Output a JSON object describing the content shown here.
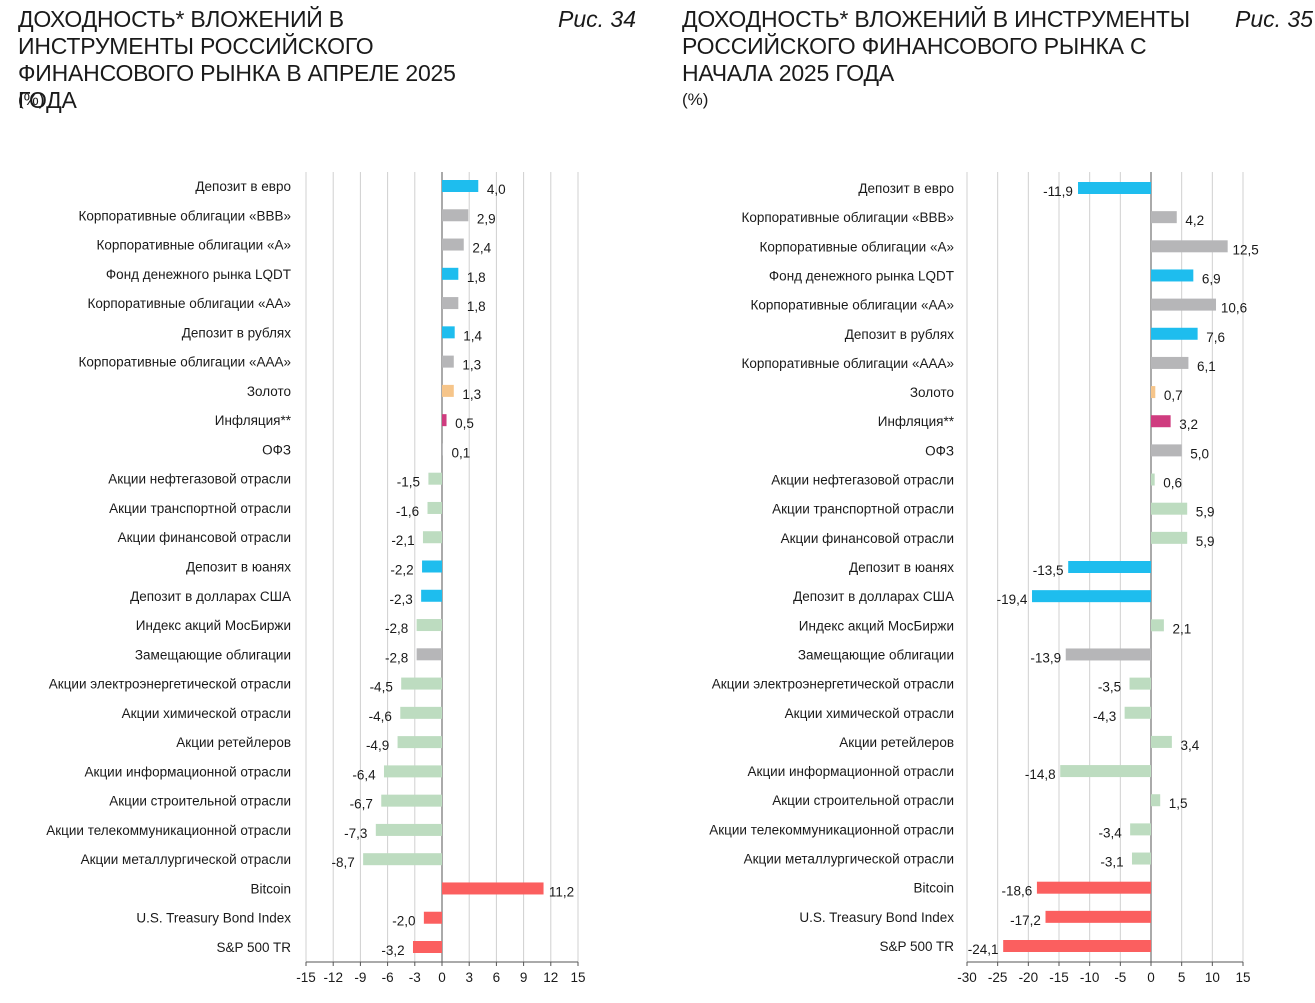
{
  "charts": [
    {
      "title": "ДОХОДНОСТЬ* ВЛОЖЕНИЙ В ИНСТРУМЕНТЫ РОССИЙСКОГО ФИНАНСОВОГО РЫНКА В АПРЕЛЕ 2025 ГОДА",
      "figure_label": "Рис. 34",
      "units": "(%)"
    },
    {
      "title": "ДОХОДНОСТЬ* ВЛОЖЕНИЙ В ИНСТРУМЕНТЫ РОССИЙСКОГО ФИНАНСОВОГО РЫНКА С НАЧАЛА 2025 ГОДА",
      "figure_label": "Рис. 35",
      "units": "(%)"
    }
  ],
  "chart_data": [
    {
      "type": "bar",
      "orientation": "horizontal",
      "title": "ДОХОДНОСТЬ* ВЛОЖЕНИЙ В ИНСТРУМЕНТЫ РОССИЙСКОГО ФИНАНСОВОГО РЫНКА В АПРЕЛЕ 2025 ГОДА",
      "ylabel": "(%)",
      "xlim": [
        -15,
        15
      ],
      "xticks": [
        -15,
        -12,
        -9,
        -6,
        -3,
        0,
        3,
        6,
        9,
        12,
        15
      ],
      "grid": true,
      "categories": [
        "Депозит в евро",
        "Корпоративные облигации «BBB»",
        "Корпоративные облигации «A»",
        "Фонд денежного рынка LQDT",
        "Корпоративные облигации «AA»",
        "Депозит в рублях",
        "Корпоративные облигации «AAA»",
        "Золото",
        "Инфляция**",
        "ОФЗ",
        "Акции нефтегазовой отрасли",
        "Акции транспортной отрасли",
        "Акции финансовой отрасли",
        "Депозит в юанях",
        "Депозит в долларах США",
        "Индекс акций МосБиржи",
        "Замещающие облигации",
        "Акции электроэнергетической отрасли",
        "Акции химической отрасли",
        "Акции ретейлеров",
        "Акции информационной отрасли",
        "Акции строительной отрасли",
        "Акции телекоммуникационной отрасли",
        "Акции металлургической отрасли",
        "Bitcoin",
        "U.S. Treasury Bond Index",
        "S&P 500 TR"
      ],
      "values": [
        4.0,
        2.9,
        2.4,
        1.8,
        1.8,
        1.4,
        1.3,
        1.3,
        0.5,
        0.1,
        -1.5,
        -1.6,
        -2.1,
        -2.2,
        -2.3,
        -2.8,
        -2.8,
        -4.5,
        -4.6,
        -4.9,
        -6.4,
        -6.7,
        -7.3,
        -8.7,
        11.2,
        -2.0,
        -3.2
      ],
      "value_labels": [
        "4,0",
        "2,9",
        "2,4",
        "1,8",
        "1,8",
        "1,4",
        "1,3",
        "1,3",
        "0,5",
        "0,1",
        "-1,5",
        "-1,6",
        "-2,1",
        "-2,2",
        "-2,3",
        "-2,8",
        "-2,8",
        "-4,5",
        "-4,6",
        "-4,9",
        "-6,4",
        "-6,7",
        "-7,3",
        "-8,7",
        "11,2",
        "-2,0",
        "-3,2"
      ],
      "colors": [
        "#1ebdee",
        "#b6b6b8",
        "#b6b6b8",
        "#1ebdee",
        "#b6b6b8",
        "#1ebdee",
        "#b6b6b8",
        "#f6c58a",
        "#cf3c7f",
        "#b6b6b8",
        "#bddcc0",
        "#bddcc0",
        "#bddcc0",
        "#1ebdee",
        "#1ebdee",
        "#bddcc0",
        "#b6b6b8",
        "#bddcc0",
        "#bddcc0",
        "#bddcc0",
        "#bddcc0",
        "#bddcc0",
        "#bddcc0",
        "#bddcc0",
        "#fb5f5f",
        "#fb5f5f",
        "#fb5f5f"
      ]
    },
    {
      "type": "bar",
      "orientation": "horizontal",
      "title": "ДОХОДНОСТЬ* ВЛОЖЕНИЙ В ИНСТРУМЕНТЫ РОССИЙСКОГО ФИНАНСОВОГО РЫНКА С НАЧАЛА 2025 ГОДА",
      "ylabel": "(%)",
      "xlim": [
        -30,
        15
      ],
      "xticks": [
        -30,
        -25,
        -20,
        -15,
        -10,
        -5,
        0,
        5,
        10,
        15
      ],
      "grid": true,
      "categories": [
        "Депозит в евро",
        "Корпоративные облигации «BBB»",
        "Корпоративные облигации «A»",
        "Фонд денежного рынка LQDT",
        "Корпоративные облигации «AA»",
        "Депозит в рублях",
        "Корпоративные облигации «AAA»",
        "Золото",
        "Инфляция**",
        "ОФЗ",
        "Акции нефтегазовой отрасли",
        "Акции транспортной отрасли",
        "Акции финансовой отрасли",
        "Депозит в юанях",
        "Депозит в долларах США",
        "Индекс акций МосБиржи",
        "Замещающие облигации",
        "Акции электроэнергетической отрасли",
        "Акции химической отрасли",
        "Акции ретейлеров",
        "Акции информационной отрасли",
        "Акции строительной отрасли",
        "Акции телекоммуникационной отрасли",
        "Акции металлургической отрасли",
        "Bitcoin",
        "U.S. Treasury Bond Index",
        "S&P 500 TR"
      ],
      "values": [
        -11.9,
        4.2,
        12.5,
        6.9,
        10.6,
        7.6,
        6.1,
        0.7,
        3.2,
        5.0,
        0.6,
        5.9,
        5.9,
        -13.5,
        -19.4,
        2.1,
        -13.9,
        -3.5,
        -4.3,
        3.4,
        -14.8,
        1.5,
        -3.4,
        -3.1,
        -18.6,
        -17.2,
        -24.1
      ],
      "value_labels": [
        "-11,9",
        "4,2",
        "12,5",
        "6,9",
        "10,6",
        "7,6",
        "6,1",
        "0,7",
        "3,2",
        "5,0",
        "0,6",
        "5,9",
        "5,9",
        "-13,5",
        "-19,4",
        "2,1",
        "-13,9",
        "-3,5",
        "-4,3",
        "3,4",
        "-14,8",
        "1,5",
        "-3,4",
        "-3,1",
        "-18,6",
        "-17,2",
        "-24,1"
      ],
      "colors": [
        "#1ebdee",
        "#b6b6b8",
        "#b6b6b8",
        "#1ebdee",
        "#b6b6b8",
        "#1ebdee",
        "#b6b6b8",
        "#f6c58a",
        "#cf3c7f",
        "#b6b6b8",
        "#bddcc0",
        "#bddcc0",
        "#bddcc0",
        "#1ebdee",
        "#1ebdee",
        "#bddcc0",
        "#b6b6b8",
        "#bddcc0",
        "#bddcc0",
        "#bddcc0",
        "#bddcc0",
        "#bddcc0",
        "#bddcc0",
        "#bddcc0",
        "#fb5f5f",
        "#fb5f5f",
        "#fb5f5f"
      ]
    }
  ]
}
